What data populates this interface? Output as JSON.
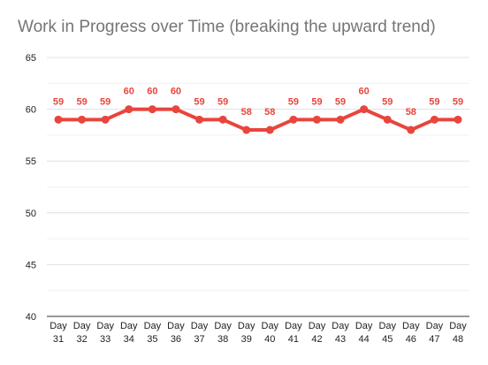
{
  "chart_data": {
    "type": "line",
    "title": "Work in Progress over Time (breaking the upward trend)",
    "xlabel": "",
    "ylabel": "",
    "categories": [
      "Day 31",
      "Day 32",
      "Day 33",
      "Day 34",
      "Day 35",
      "Day 36",
      "Day 37",
      "Day 38",
      "Day 39",
      "Day 40",
      "Day 41",
      "Day 42",
      "Day 43",
      "Day 44",
      "Day 45",
      "Day 46",
      "Day 47",
      "Day 48"
    ],
    "series": [
      {
        "values": [
          59,
          59,
          59,
          60,
          60,
          60,
          59,
          59,
          58,
          58,
          59,
          59,
          59,
          60,
          59,
          58,
          59,
          59
        ]
      }
    ],
    "ylim": [
      40,
      65
    ],
    "yticks": [
      40,
      45,
      50,
      55,
      60,
      65
    ],
    "grid": true,
    "data_labels": true,
    "line_color": "#e8453c",
    "gridline_color": "#e0e0e0",
    "axis_color": "#333333"
  }
}
